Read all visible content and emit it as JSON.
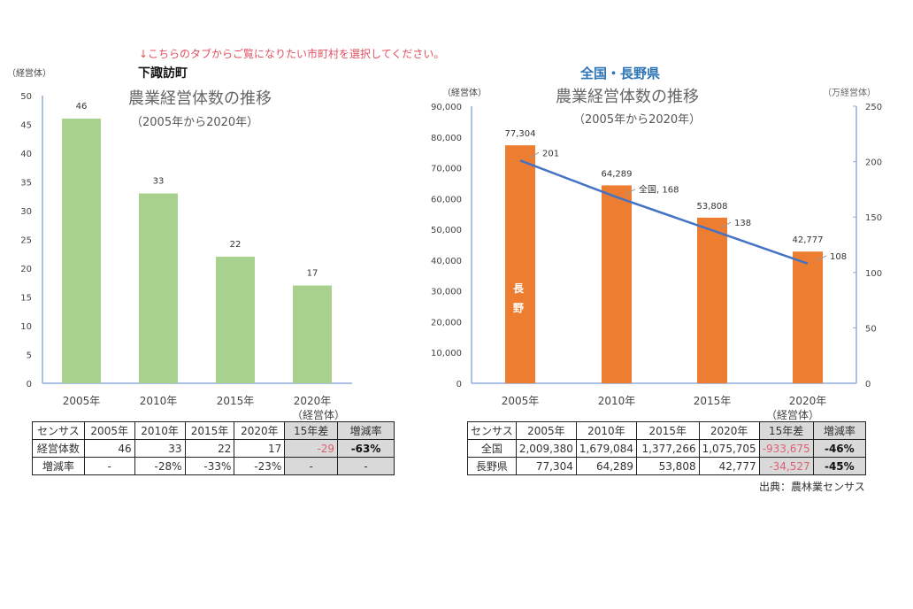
{
  "instruction": "↓こちらのタブからご覧になりたい市町村を選択してください。",
  "source": "出典：農林業センサス",
  "colors": {
    "bar_left": "#a9d18e",
    "bar_right": "#ed7d31",
    "line": "#4472c4",
    "axis": "#8faadc",
    "note": "#e05060",
    "region_title": "#2e75b6"
  },
  "chart_data": [
    {
      "type": "bar",
      "region": "下諏訪町",
      "title": "農業経営体数の推移",
      "subtitle": "（2005年から2020年）",
      "ylabel": "（経営体）",
      "xlabel_unit": "（経営体）",
      "categories": [
        "2005年",
        "2010年",
        "2015年",
        "2020年"
      ],
      "values": [
        46,
        33,
        22,
        17
      ],
      "ylim": [
        0,
        50
      ],
      "yticks": [
        0,
        5,
        10,
        15,
        20,
        25,
        30,
        35,
        40,
        45,
        50
      ],
      "grid": false
    },
    {
      "type": "bar+line",
      "region": "全国・長野県",
      "title": "農業経営体数の推移",
      "subtitle": "（2005年から2020年）",
      "ylabel": "（経営体）",
      "y2label": "（万経営体）",
      "xlabel_unit": "（経営体）",
      "categories": [
        "2005年",
        "2010年",
        "2015年",
        "2020年"
      ],
      "series": [
        {
          "name": "長野",
          "type": "bar",
          "axis": "left",
          "values": [
            77304,
            64289,
            53808,
            42777
          ],
          "labels": [
            "77,304",
            "64,289",
            "53,808",
            "42,777"
          ]
        },
        {
          "name": "全国",
          "type": "line",
          "axis": "right",
          "values": [
            201,
            168,
            138,
            108
          ],
          "labels": [
            "201",
            "全国, 168",
            "138",
            "108"
          ]
        }
      ],
      "ylim": [
        0,
        90000
      ],
      "yticks": [
        "0",
        "10,000",
        "20,000",
        "30,000",
        "40,000",
        "50,000",
        "60,000",
        "70,000",
        "80,000",
        "90,000"
      ],
      "y2lim": [
        0,
        250
      ],
      "y2ticks": [
        "0",
        "50",
        "100",
        "150",
        "200",
        "250"
      ],
      "bar_inner_label": [
        "長",
        "野"
      ],
      "grid": false
    }
  ],
  "left_table": {
    "header": [
      "センサス",
      "2005年",
      "2010年",
      "2015年",
      "2020年",
      "15年差",
      "増減率"
    ],
    "rows": [
      [
        "経営体数",
        "46",
        "33",
        "22",
        "17",
        "-29",
        "-63%"
      ],
      [
        "増減率",
        "-",
        "-28%",
        "-33%",
        "-23%",
        "-",
        "-"
      ]
    ]
  },
  "right_table": {
    "header": [
      "センサス",
      "2005年",
      "2010年",
      "2015年",
      "2020年",
      "15年差",
      "増減率"
    ],
    "rows": [
      [
        "全国",
        "2,009,380",
        "1,679,084",
        "1,377,266",
        "1,075,705",
        "-933,675",
        "-46%"
      ],
      [
        "長野県",
        "77,304",
        "64,289",
        "53,808",
        "42,777",
        "-34,527",
        "-45%"
      ]
    ]
  }
}
